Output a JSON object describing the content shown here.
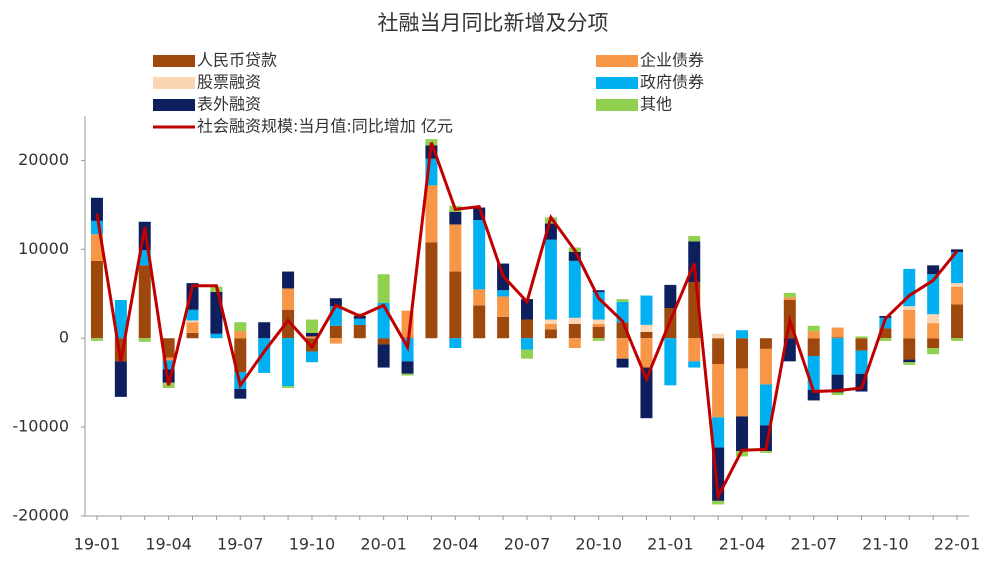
{
  "chart_data": {
    "type": "stacked_bar_line",
    "title": "社融当月同比新增及分项",
    "categories": [
      "19-01",
      null,
      null,
      "19-04",
      null,
      null,
      "19-07",
      null,
      null,
      "19-10",
      null,
      null,
      "20-01",
      null,
      null,
      "20-04",
      null,
      null,
      "20-07",
      null,
      null,
      "20-10",
      null,
      null,
      "21-01",
      null,
      null,
      "21-04",
      null,
      null,
      "21-07",
      null,
      null,
      "21-10",
      null,
      null,
      "22-01"
    ],
    "series": [
      {
        "name": "人民币贷款",
        "color": "#9e480e",
        "values": [
          8700,
          -2600,
          8200,
          -2200,
          600,
          0,
          -3800,
          0,
          3200,
          -1500,
          1400,
          1500,
          -700,
          100,
          10800,
          7500,
          3700,
          2400,
          2100,
          1000,
          1600,
          1300,
          1800,
          700,
          3400,
          6300,
          -2900,
          -3400,
          -1200,
          4300,
          -2000,
          100,
          -1400,
          1100,
          -2400,
          -1100,
          3800
        ]
      },
      {
        "name": "企业债券",
        "color": "#f79646",
        "values": [
          3000,
          0,
          0,
          -300,
          1200,
          0,
          800,
          0,
          2400,
          200,
          -600,
          0,
          0,
          3000,
          6400,
          5300,
          1800,
          2300,
          0,
          600,
          -1100,
          300,
          -2300,
          -3300,
          0,
          -2600,
          -6000,
          -5400,
          -4000,
          300,
          800,
          1100,
          0,
          0,
          3200,
          1700,
          2000
        ]
      },
      {
        "name": "股票融资",
        "color": "#fcd5b5",
        "values": [
          0,
          0,
          0,
          0,
          200,
          0,
          0,
          0,
          0,
          0,
          0,
          0,
          0,
          0,
          0,
          0,
          0,
          0,
          0,
          500,
          700,
          500,
          0,
          800,
          0,
          0,
          500,
          0,
          0,
          0,
          0,
          0,
          0,
          0,
          400,
          1000,
          400
        ]
      },
      {
        "name": "政府债券",
        "color": "#00b0f0",
        "values": [
          1500,
          4300,
          1700,
          -1000,
          1200,
          500,
          -1900,
          -3900,
          -5400,
          -1200,
          2200,
          700,
          4000,
          -2600,
          3000,
          -1100,
          7800,
          700,
          -1300,
          9000,
          6400,
          3100,
          2300,
          3300,
          -5300,
          -700,
          -3400,
          900,
          -4600,
          0,
          -3800,
          -4100,
          -2600,
          1200,
          4200,
          4500,
          3500
        ]
      },
      {
        "name": "表外融资",
        "color": "#0d1f5c",
        "values": [
          2600,
          -4000,
          3200,
          -1500,
          3000,
          4700,
          -1100,
          1800,
          1900,
          400,
          900,
          300,
          -2600,
          -1400,
          1500,
          1400,
          1400,
          3000,
          2300,
          1800,
          1000,
          200,
          -1000,
          -5700,
          2600,
          4600,
          -6000,
          -3900,
          -2900,
          -2600,
          -1200,
          -2000,
          -2000,
          200,
          -300,
          1000,
          300
        ]
      },
      {
        "name": "其他",
        "color": "#92d050",
        "values": [
          -300,
          0,
          -400,
          -600,
          0,
          600,
          1000,
          0,
          -200,
          1500,
          0,
          300,
          3200,
          -200,
          700,
          700,
          0,
          0,
          -1000,
          700,
          500,
          -300,
          300,
          0,
          0,
          600,
          -400,
          -600,
          -200,
          500,
          600,
          -300,
          200,
          -300,
          -300,
          -700,
          -300
        ]
      }
    ],
    "line": {
      "name": "社会融资规模:当月值:同比增加 亿元",
      "color": "#c00000",
      "values": [
        14000,
        -2600,
        12500,
        -5300,
        5900,
        5900,
        -5300,
        -1500,
        2000,
        -1000,
        3700,
        2500,
        3700,
        -1000,
        22000,
        14500,
        14800,
        7000,
        4100,
        13600,
        9900,
        4500,
        1900,
        -4600,
        2000,
        8400,
        -17800,
        -12600,
        -12500,
        2000,
        -6000,
        -5900,
        -5600,
        2200,
        4800,
        6500,
        9800
      ]
    },
    "ylim": [
      -20000,
      25000
    ],
    "yticks": [
      -20000,
      -10000,
      0,
      10000,
      20000
    ]
  }
}
